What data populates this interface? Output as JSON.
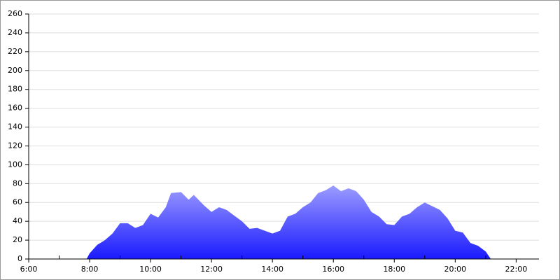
{
  "chart_data": {
    "type": "area",
    "x": [
      7.9,
      8,
      8.25,
      8.5,
      8.75,
      9,
      9.25,
      9.5,
      9.75,
      10,
      10.25,
      10.5,
      10.67,
      11,
      11.25,
      11.42,
      11.75,
      12,
      12.25,
      12.5,
      12.75,
      13,
      13.25,
      13.5,
      13.75,
      14,
      14.25,
      14.5,
      14.75,
      15,
      15.25,
      15.5,
      15.75,
      16,
      16.25,
      16.5,
      16.75,
      17,
      17.25,
      17.5,
      17.75,
      18,
      18.25,
      18.5,
      18.75,
      19,
      19.25,
      19.5,
      19.75,
      20,
      20.25,
      20.5,
      20.75,
      21,
      21.17
    ],
    "values": [
      0,
      6,
      15,
      20,
      27,
      38,
      38,
      33,
      36,
      48,
      44,
      55,
      70,
      71,
      63,
      68,
      57,
      50,
      55,
      52,
      46,
      40,
      32,
      33,
      30,
      27,
      30,
      45,
      48,
      55,
      60,
      70,
      73,
      78,
      72,
      75,
      72,
      63,
      50,
      45,
      37,
      36,
      45,
      48,
      55,
      60,
      56,
      52,
      43,
      30,
      28,
      17,
      14,
      8,
      0
    ],
    "color_top": "#9c9cff",
    "color_bottom": "#1a1aff",
    "xlim": [
      6,
      22.75
    ],
    "xticks": [
      {
        "value": 6,
        "label": "6:00"
      },
      {
        "value": 8,
        "label": "8:00"
      },
      {
        "value": 10,
        "label": "10:00"
      },
      {
        "value": 12,
        "label": "12:00"
      },
      {
        "value": 14,
        "label": "14:00"
      },
      {
        "value": 16,
        "label": "16:00"
      },
      {
        "value": 18,
        "label": "18:00"
      },
      {
        "value": 20,
        "label": "20:00"
      },
      {
        "value": 22,
        "label": "22:00"
      }
    ],
    "xticks_minor": [
      7,
      9,
      11,
      13,
      15,
      17,
      19,
      21
    ],
    "ylim": [
      0,
      260
    ],
    "yticks": [
      0,
      20,
      40,
      60,
      80,
      100,
      120,
      140,
      160,
      180,
      200,
      220,
      240,
      260
    ],
    "grid": true
  }
}
